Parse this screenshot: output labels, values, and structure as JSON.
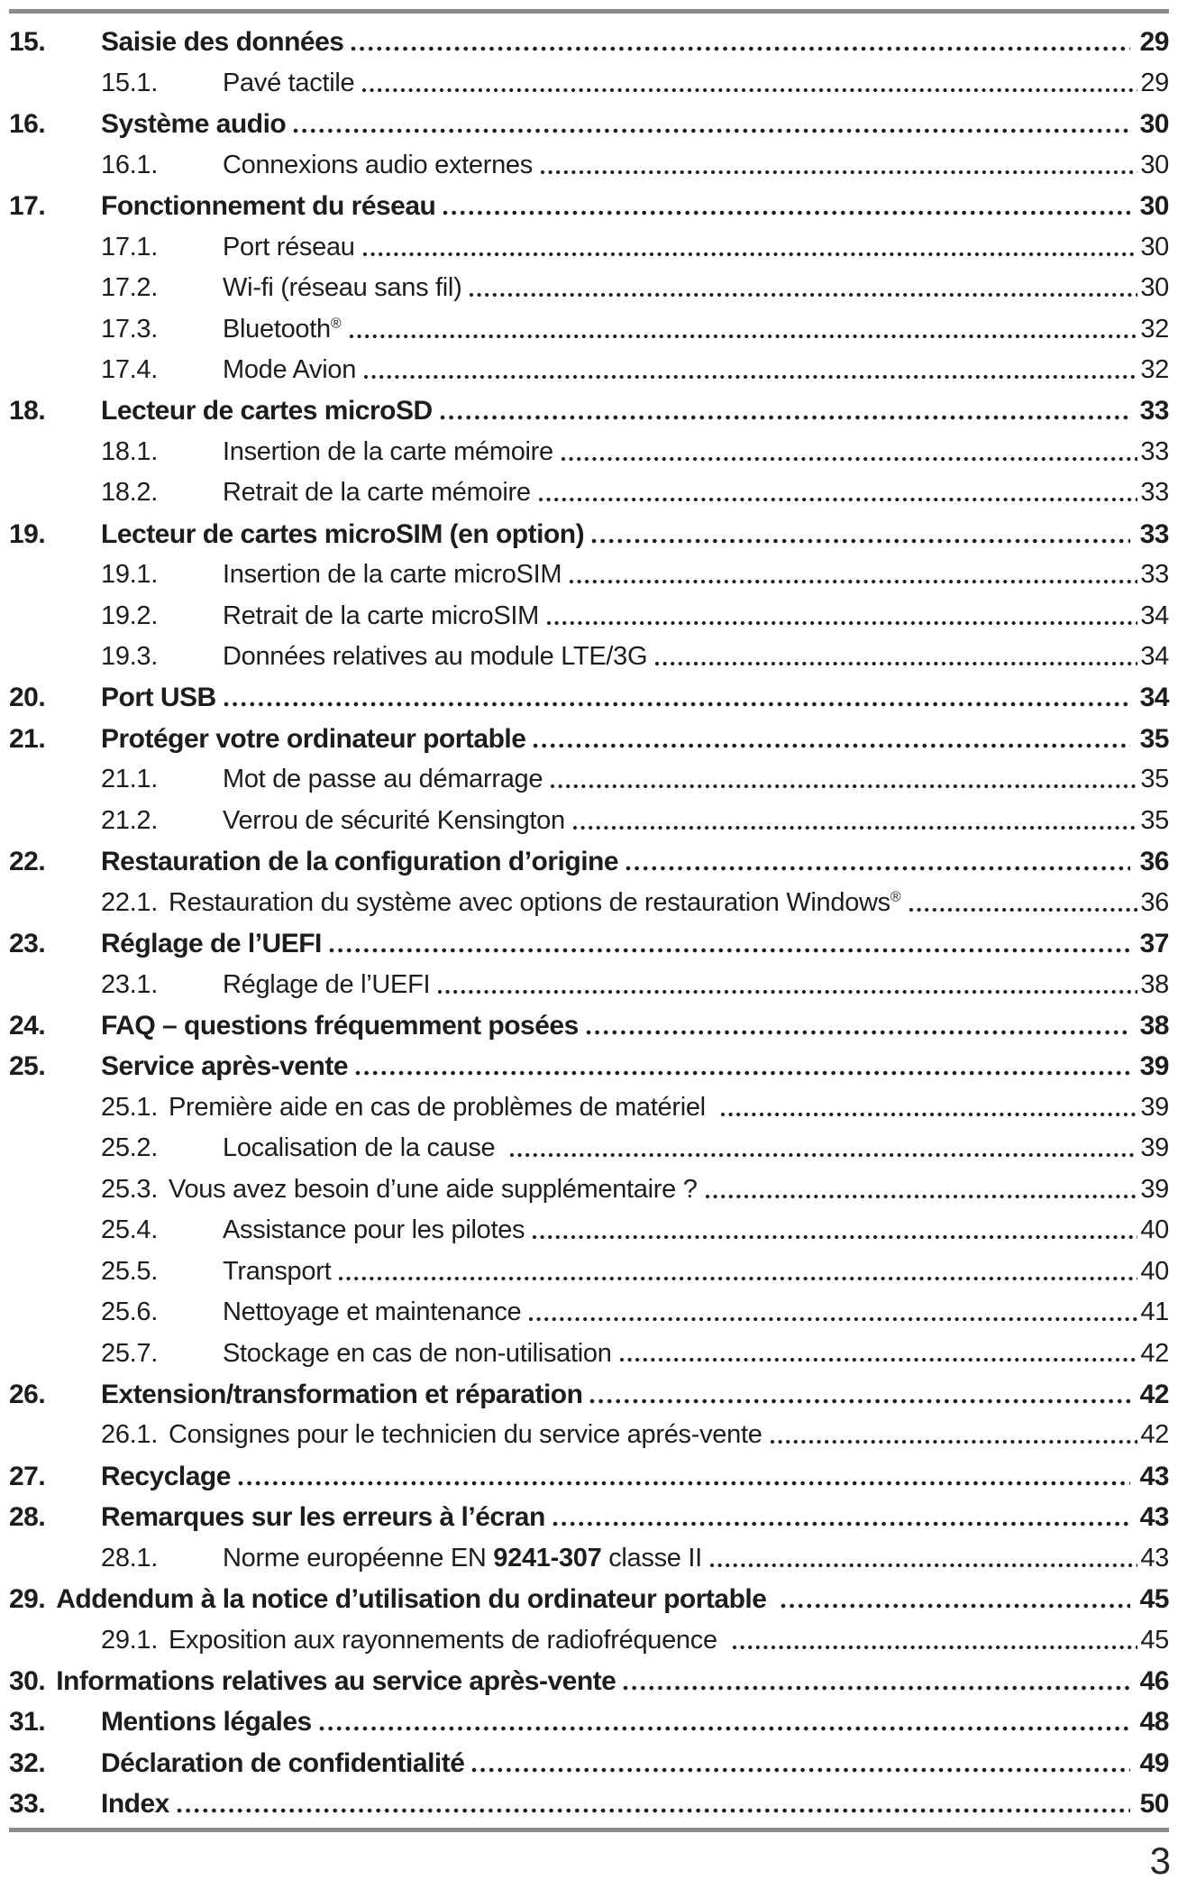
{
  "page": {
    "folio": "3"
  },
  "colors": {
    "text": "#1d1d1b",
    "rule": "#8a8a8a"
  },
  "toc": {
    "entries": [
      {
        "num": "15.",
        "title": "Saisie des données",
        "page": "29",
        "level": 1
      },
      {
        "num": "15.1.",
        "title": "Pavé tactile",
        "page": "29",
        "level": 2
      },
      {
        "num": "16.",
        "title": "Système audio",
        "page": "30",
        "level": 1
      },
      {
        "num": "16.1.",
        "title": "Connexions audio externes",
        "page": "30",
        "level": 2
      },
      {
        "num": "17.",
        "title": "Fonctionnement du réseau",
        "page": "30",
        "level": 1
      },
      {
        "num": "17.1.",
        "title": "Port réseau",
        "page": "30",
        "level": 2
      },
      {
        "num": "17.2.",
        "title": "Wi-fi (réseau sans fil)",
        "page": "30",
        "level": 2
      },
      {
        "num": "17.3.",
        "title": "Bluetooth",
        "sup": "®",
        "page": "32",
        "level": 2
      },
      {
        "num": "17.4.",
        "title": "Mode Avion",
        "page": "32",
        "level": 2
      },
      {
        "num": "18.",
        "title": "Lecteur de cartes microSD",
        "page": "33",
        "level": 1
      },
      {
        "num": "18.1.",
        "title": "Insertion de la carte mémoire",
        "page": "33",
        "level": 2
      },
      {
        "num": "18.2.",
        "title": "Retrait de la carte mémoire",
        "page": "33",
        "level": 2
      },
      {
        "num": "19.",
        "title": "Lecteur de cartes microSIM (en option)",
        "page": "33",
        "level": 1
      },
      {
        "num": "19.1.",
        "title": "Insertion de la carte microSIM",
        "page": "33",
        "level": 2
      },
      {
        "num": "19.2.",
        "title": "Retrait de la carte microSIM",
        "page": "34",
        "level": 2
      },
      {
        "num": "19.3.",
        "title": "Données relatives au module LTE/3G",
        "page": "34",
        "level": 2
      },
      {
        "num": "20.",
        "title": "Port USB",
        "page": "34",
        "level": 1
      },
      {
        "num": "21.",
        "title": "Protéger votre ordinateur portable",
        "page": "35",
        "level": 1
      },
      {
        "num": "21.1.",
        "title": "Mot de passe au démarrage",
        "page": "35",
        "level": 2
      },
      {
        "num": "21.2.",
        "title": "Verrou de sécurité Kensington",
        "page": "35",
        "level": 2
      },
      {
        "num": "22.",
        "title": "Restauration de la configuration d’origine",
        "page": "36",
        "level": 1
      },
      {
        "num": "22.1.",
        "title": "Restauration du système avec options de restauration Windows",
        "sup": "®",
        "page": "36",
        "level": 2,
        "tight": true
      },
      {
        "num": "23.",
        "title": "Réglage de l’UEFI",
        "page": "37",
        "level": 1
      },
      {
        "num": "23.1.",
        "title": "Réglage de l’UEFI",
        "page": "38",
        "level": 2
      },
      {
        "num": "24.",
        "title": "FAQ – questions fréquemment posées",
        "page": "38",
        "level": 1
      },
      {
        "num": "25.",
        "title": "Service après-vente",
        "page": "39",
        "level": 1
      },
      {
        "num": "25.1.",
        "title": "Première aide en cas de problèmes de matériel ",
        "page": "39",
        "level": 2,
        "tight": true
      },
      {
        "num": "25.2.",
        "title": "Localisation de la cause ",
        "page": "39",
        "level": 2
      },
      {
        "num": "25.3.",
        "title": "Vous avez besoin d’une aide supplémentaire ?",
        "page": "39",
        "level": 2,
        "tight": true
      },
      {
        "num": "25.4.",
        "title": "Assistance pour les pilotes",
        "page": "40",
        "level": 2
      },
      {
        "num": "25.5.",
        "title": "Transport",
        "page": "40",
        "level": 2
      },
      {
        "num": "25.6.",
        "title": "Nettoyage et maintenance",
        "page": "41",
        "level": 2
      },
      {
        "num": "25.7.",
        "title": "Stockage en cas de non-utilisation",
        "page": "42",
        "level": 2
      },
      {
        "num": "26.",
        "title": "Extension/transformation et réparation",
        "page": "42",
        "level": 1
      },
      {
        "num": "26.1.",
        "title": "Consignes pour le technicien du service aprés-vente",
        "page": "42",
        "level": 2,
        "tight": true
      },
      {
        "num": "27.",
        "title": "Recyclage",
        "page": "43",
        "level": 1
      },
      {
        "num": "28.",
        "title": "Remarques sur les erreurs à l’écran",
        "page": "43",
        "level": 1
      },
      {
        "num": "28.1.",
        "parts": [
          {
            "t": "Norme européenne EN "
          },
          {
            "t": "9241-307",
            "b": true
          },
          {
            "t": " classe II"
          }
        ],
        "page": "43",
        "level": 2
      },
      {
        "num": "29.",
        "title": "Addendum à la notice d’utilisation du ordinateur portable ",
        "page": "45",
        "level": 1,
        "tight": true
      },
      {
        "num": "29.1.",
        "title": "Exposition aux rayonnements de radiofréquence ",
        "page": "45",
        "level": 2,
        "tight": true
      },
      {
        "num": "30.",
        "title": "Informations relatives au service après-vente",
        "page": "46",
        "level": 1,
        "tight": true
      },
      {
        "num": "31.",
        "title": "Mentions légales",
        "page": "48",
        "level": 1
      },
      {
        "num": "32.",
        "title": "Déclaration de confidentialité",
        "page": "49",
        "level": 1
      },
      {
        "num": "33.",
        "title": "Index",
        "page": "50",
        "level": 1
      }
    ]
  }
}
